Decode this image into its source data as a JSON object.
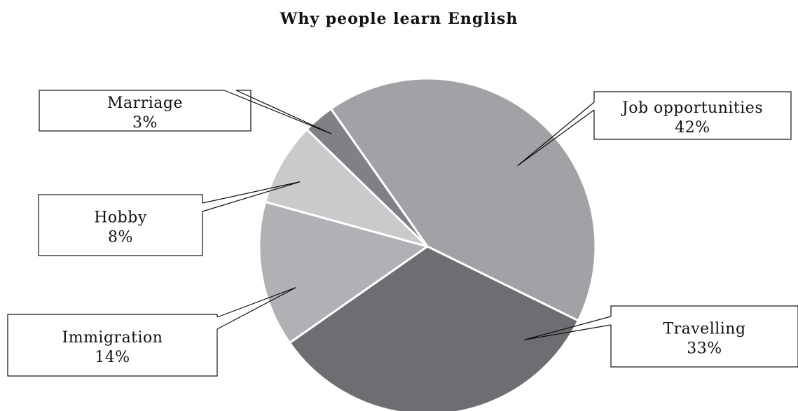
{
  "chart_data": {
    "type": "pie",
    "title": "Why people learn English",
    "slices": [
      {
        "label": "Job opportunities",
        "value": 42,
        "value_label": "42%",
        "color": "#a1a2a5"
      },
      {
        "label": "Travelling",
        "value": 33,
        "value_label": "33%",
        "color": "#6d6e71"
      },
      {
        "label": "Immigration",
        "value": 14,
        "value_label": "14%",
        "color": "#b0b1b4"
      },
      {
        "label": "Hobby",
        "value": 8,
        "value_label": "8%",
        "color": "#c9cacc"
      },
      {
        "label": "Marriage",
        "value": 3,
        "value_label": "3%",
        "color": "#808184"
      }
    ],
    "legend": "none"
  }
}
